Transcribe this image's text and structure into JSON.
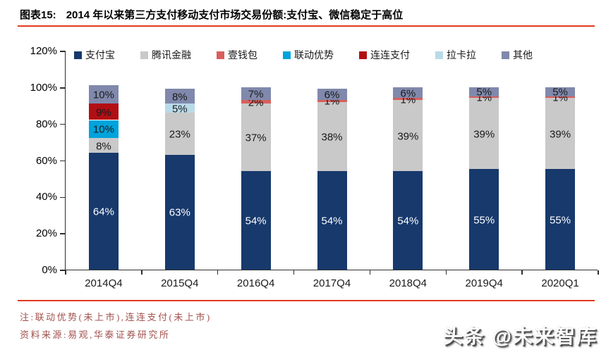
{
  "header": {
    "figure_label": "图表15:",
    "title": "2014 年以来第三方支付移动支付市场交易份额:支付宝、微信稳定于高位"
  },
  "chart_data": {
    "type": "bar",
    "stacked": true,
    "title": "2014 年以来第三方支付移动支付市场交易份额:支付宝、微信稳定于高位",
    "categories": [
      "2014Q4",
      "2015Q4",
      "2016Q4",
      "2017Q4",
      "2018Q4",
      "2019Q4",
      "2020Q1"
    ],
    "series": [
      {
        "name": "支付宝",
        "color": "#17396C",
        "label_color": "#FFFFFF",
        "values": [
          64,
          63,
          54,
          54,
          54,
          55,
          55
        ]
      },
      {
        "name": "腾讯金融",
        "color": "#C9C9C9",
        "label_color": "#1a1a1a",
        "values": [
          8,
          23,
          37,
          38,
          39,
          39,
          39
        ]
      },
      {
        "name": "壹钱包",
        "color": "#D95F5C",
        "label_color": "#1a1a1a",
        "values": [
          0,
          0,
          2,
          1,
          1,
          1,
          1
        ]
      },
      {
        "name": "联动优势",
        "color": "#00A3DC",
        "label_color": "#1a1a1a",
        "values": [
          10,
          0,
          0,
          0,
          0,
          0,
          0
        ]
      },
      {
        "name": "连连支付",
        "color": "#B20F14",
        "label_color": "#1a1a1a",
        "values": [
          9,
          0,
          0,
          0,
          0,
          0,
          0
        ]
      },
      {
        "name": "拉卡拉",
        "color": "#B9DAE9",
        "label_color": "#1a1a1a",
        "values": [
          0,
          5,
          0,
          0,
          0,
          0,
          0
        ]
      },
      {
        "name": "其他",
        "color": "#8089AC",
        "label_color": "#1a1a1a",
        "values": [
          10,
          8,
          7,
          6,
          6,
          5,
          5
        ]
      }
    ],
    "xlabel": "",
    "ylabel": "",
    "ylim": [
      0,
      120
    ],
    "ytick_step": 20,
    "ytick_suffix": "%",
    "value_suffix": "%",
    "grid": false,
    "legend_position": "top"
  },
  "notes": {
    "note": "注:联动优势(未上市),连连支付(未上市)",
    "source": "资料来源:易观,华泰证券研究所"
  },
  "watermark": "头条 @未来智库",
  "colors": {
    "accent_line": "#E23B21",
    "axis": "#2F2F2F"
  }
}
